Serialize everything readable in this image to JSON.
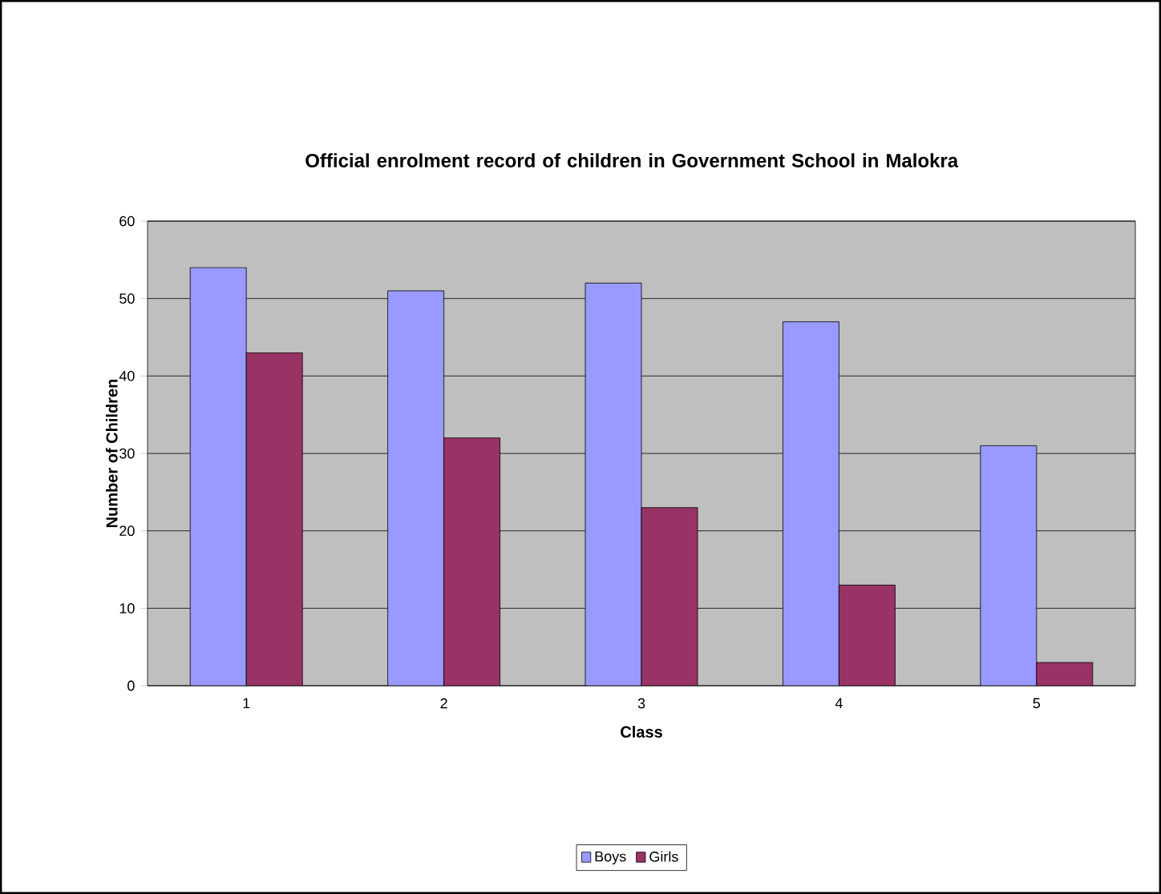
{
  "chart_data": {
    "type": "bar",
    "title": "Official enrolment record of children in Government School in Malokra",
    "xlabel": "Class",
    "ylabel": "Number of Children",
    "categories": [
      "1",
      "2",
      "3",
      "4",
      "5"
    ],
    "series": [
      {
        "name": "Boys",
        "color": "#9999ff",
        "values": [
          54,
          51,
          52,
          47,
          31
        ]
      },
      {
        "name": "Girls",
        "color": "#993366",
        "values": [
          43,
          32,
          23,
          13,
          3
        ]
      }
    ],
    "ylim": [
      0,
      60
    ],
    "yticks": [
      0,
      10,
      20,
      30,
      40,
      50,
      60
    ],
    "grid": "y",
    "legend": "bottom"
  }
}
